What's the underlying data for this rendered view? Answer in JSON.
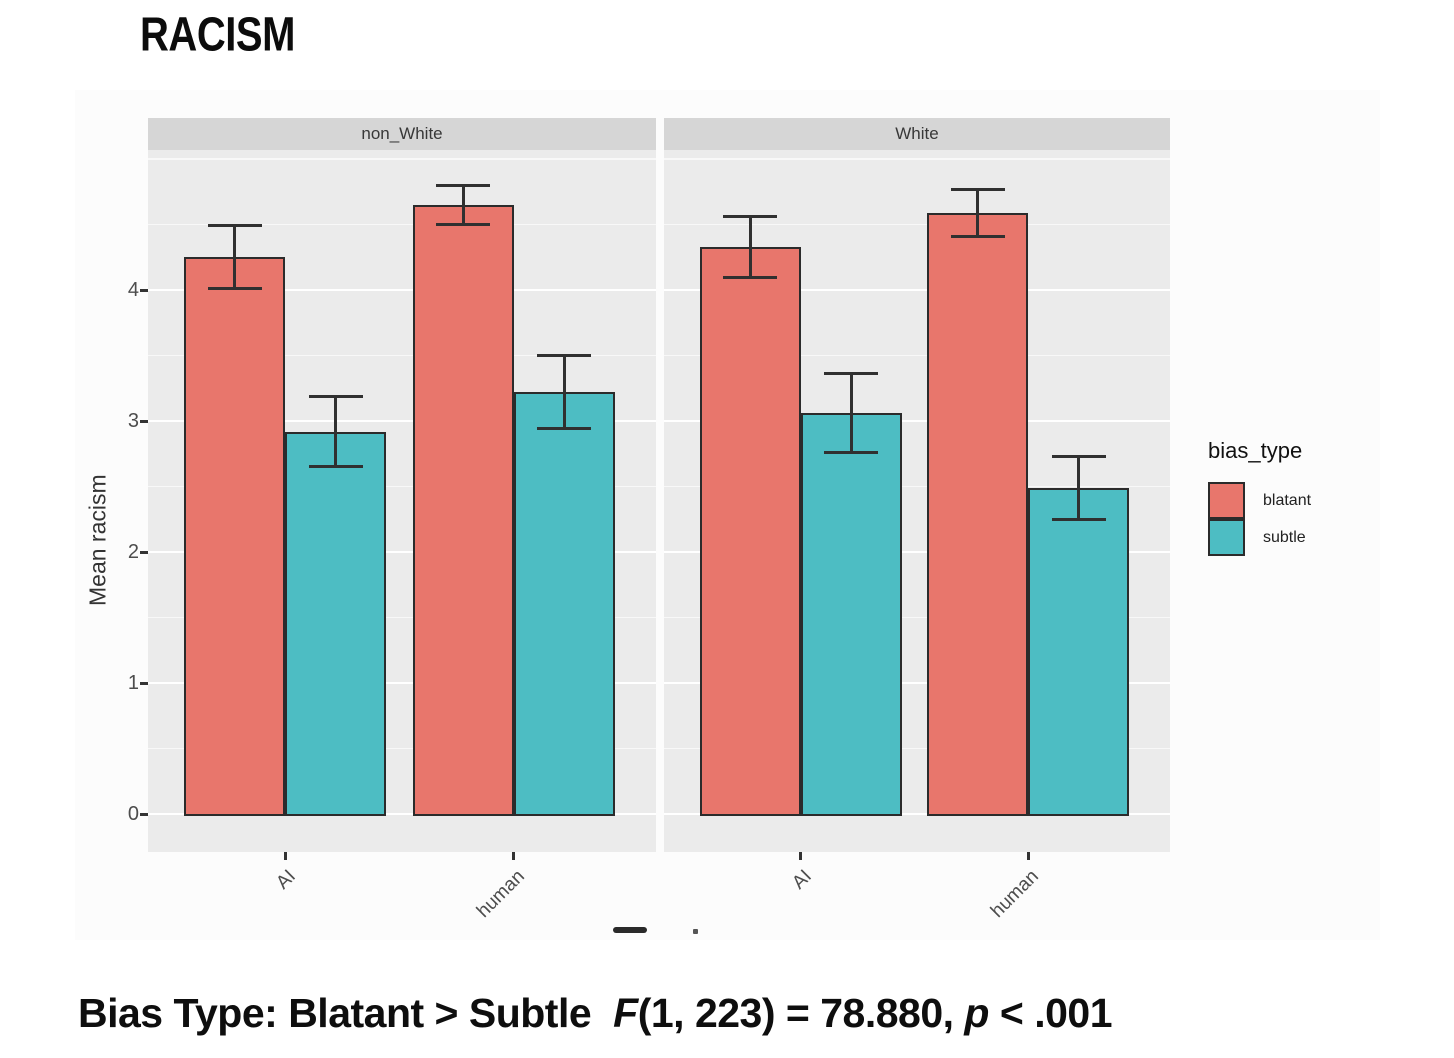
{
  "page": {
    "title": "RACISM"
  },
  "chart_data": {
    "type": "bar",
    "title": "RACISM",
    "xlabel": "",
    "ylabel": "Mean racism",
    "categories": [
      "AI",
      "human"
    ],
    "facets": [
      {
        "label": "non_White",
        "series": [
          {
            "name": "blatant",
            "values": [
              4.25,
              4.65
            ],
            "errors": [
              0.24,
              0.15
            ]
          },
          {
            "name": "subtle",
            "values": [
              2.92,
              3.22
            ],
            "errors": [
              0.27,
              0.28
            ]
          }
        ]
      },
      {
        "label": "White",
        "series": [
          {
            "name": "blatant",
            "values": [
              4.33,
              4.59
            ],
            "errors": [
              0.23,
              0.18
            ]
          },
          {
            "name": "subtle",
            "values": [
              3.06,
              2.49
            ],
            "errors": [
              0.3,
              0.24
            ]
          }
        ]
      }
    ],
    "legend": {
      "position": "right",
      "title": "bias_type",
      "entries": [
        {
          "label": "blatant",
          "color": "#E8766C"
        },
        {
          "label": "subtle",
          "color": "#4DBDC3"
        }
      ]
    },
    "yticks": [
      0,
      1,
      2,
      3,
      4
    ],
    "ylim": [
      -0.29,
      5.07
    ],
    "grid": "on",
    "panel_background": "#EBEBEB",
    "strip_background": "#D6D6D6",
    "bar_border_color": "#2b2b2b",
    "annotation": {
      "prefix": "Bias Type: Blatant > Subtle",
      "stat_parts": [
        {
          "t": "F",
          "i": true
        },
        {
          "t": "(1, 223) = 78.880, ",
          "i": false
        },
        {
          "t": "p",
          "i": true
        },
        {
          "t": " < .001",
          "i": false
        }
      ]
    }
  }
}
